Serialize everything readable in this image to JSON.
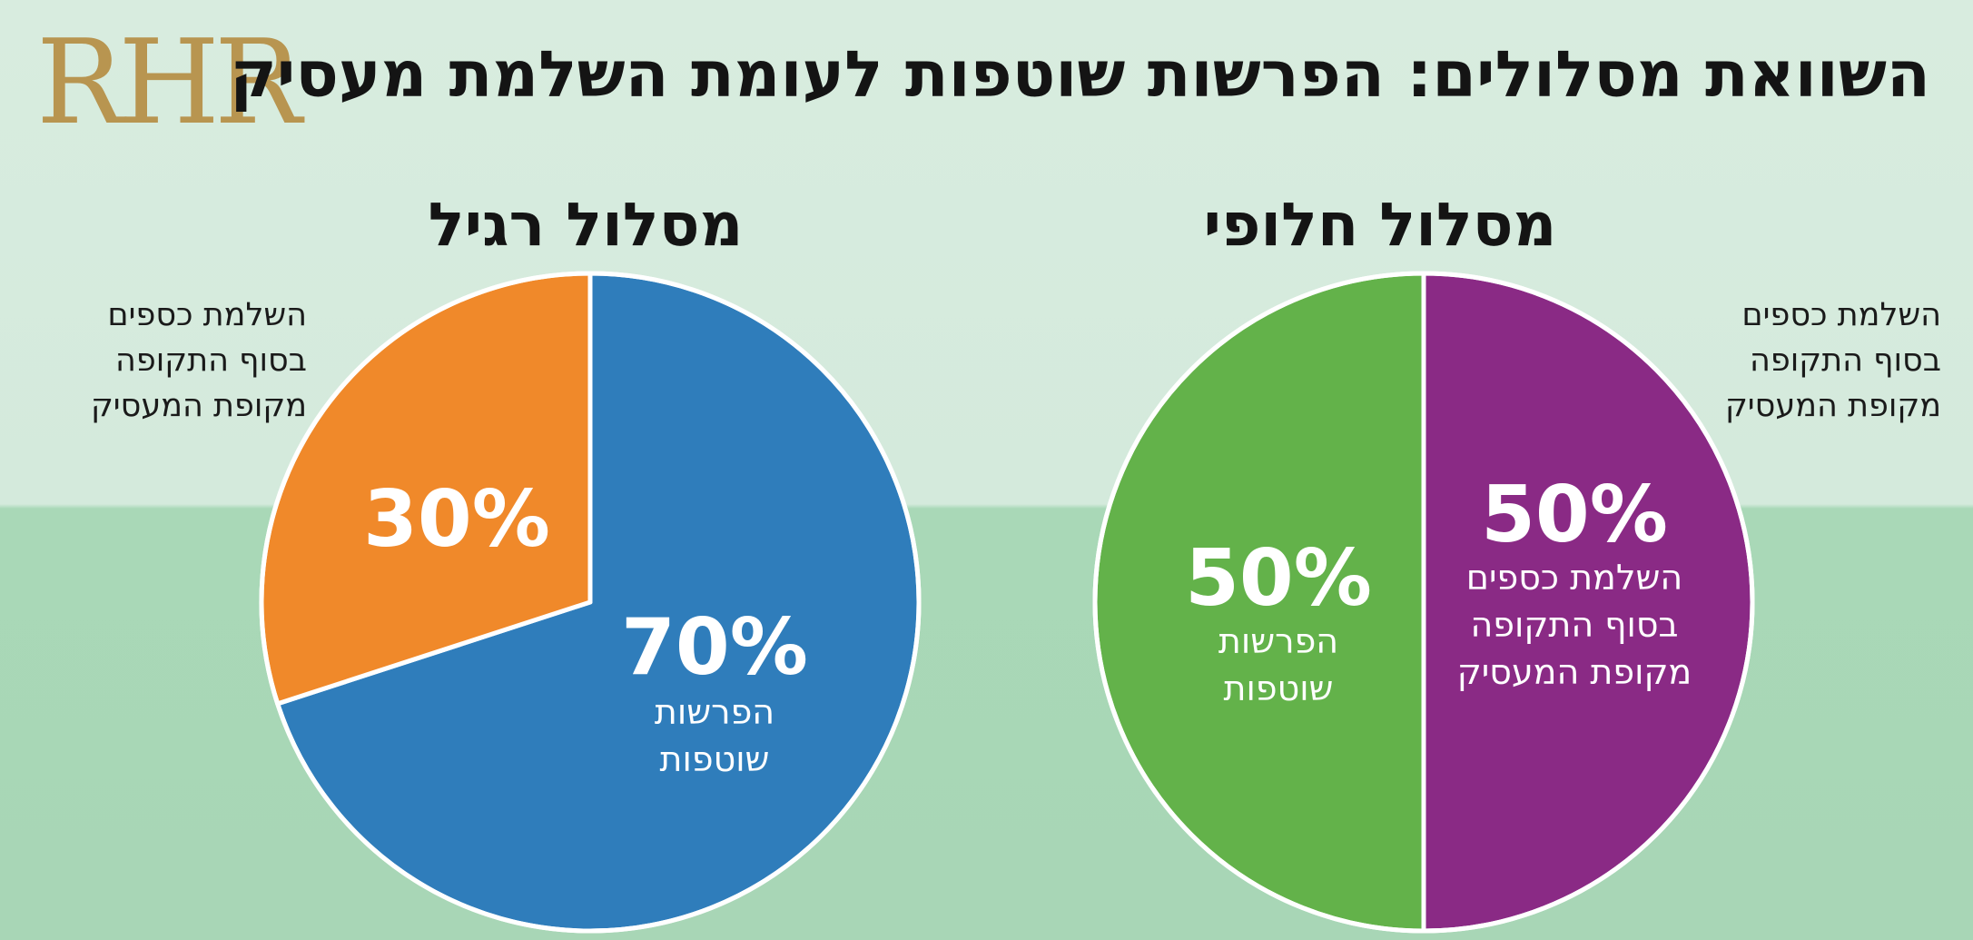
{
  "logo": {
    "text": "RHR",
    "color": "#b89550"
  },
  "title": "השוואת מסלולים: הפרשות שוטפות לעומת השלמת מעסיק",
  "chart_data": [
    {
      "type": "pie",
      "title": "מסלול רגיל",
      "side_label": [
        "השלמת כספים",
        "בסוף התקופה",
        "מקופת המעסיק"
      ],
      "slices": [
        {
          "value": 70,
          "label": "70%",
          "sublabel": [
            "הפרשות",
            "שוטפות"
          ],
          "color": "#2f7dbb"
        },
        {
          "value": 30,
          "label": "30%",
          "sublabel": [],
          "color": "#f0892a"
        }
      ]
    },
    {
      "type": "pie",
      "title": "מסלול חלופי",
      "side_label": [
        "השלמת כספים",
        "בסוף התקופה",
        "מקופת המעסיק"
      ],
      "slices": [
        {
          "value": 50,
          "label": "50%",
          "sublabel": [
            "השלמת כספים",
            "בסוף התקופה",
            "מקופת המעסיק"
          ],
          "color": "#8a2a85"
        },
        {
          "value": 50,
          "label": "50%",
          "sublabel": [
            "הפרשות",
            "שוטפות"
          ],
          "color": "#63b24a"
        }
      ]
    }
  ]
}
